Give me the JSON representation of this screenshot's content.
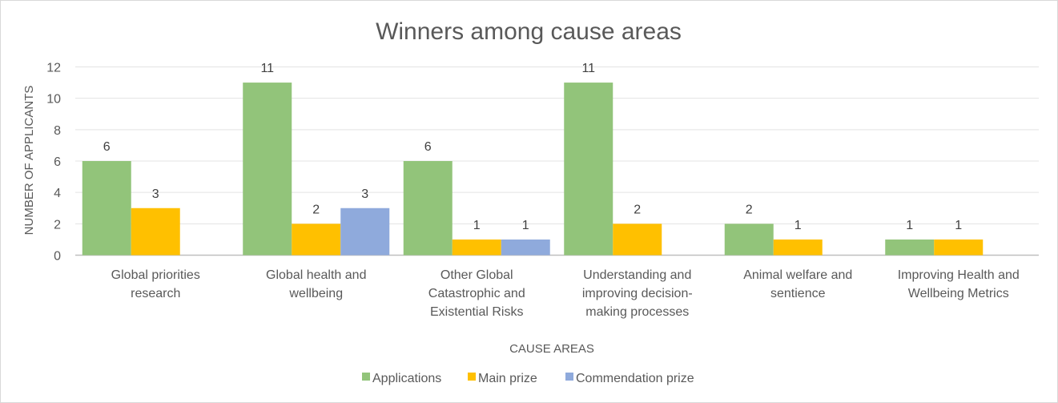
{
  "chart_data": {
    "type": "bar",
    "title": "Winners among cause areas",
    "xlabel": "CAUSE AREAS",
    "ylabel": "NUMBER OF APPLICANTS",
    "ylim": [
      0,
      12
    ],
    "yticks": [
      0,
      2,
      4,
      6,
      8,
      10,
      12
    ],
    "grid": true,
    "legend": "bottom",
    "categories": [
      [
        "Global priorities",
        "research"
      ],
      [
        "Global health and",
        "wellbeing"
      ],
      [
        "Other Global",
        "Catastrophic and",
        "Existential Risks"
      ],
      [
        "Understanding and",
        "improving decision-",
        "making processes"
      ],
      [
        "Animal welfare and",
        "sentience"
      ],
      [
        "Improving Health and",
        "Wellbeing Metrics"
      ]
    ],
    "series": [
      {
        "name": "Applications",
        "color": "#92c47a",
        "values": [
          6,
          11,
          6,
          11,
          2,
          1
        ]
      },
      {
        "name": "Main prize",
        "color": "#ffc000",
        "values": [
          3,
          2,
          1,
          2,
          1,
          1
        ]
      },
      {
        "name": "Commendation prize",
        "color": "#8faadc",
        "values": [
          null,
          3,
          1,
          null,
          null,
          null
        ]
      }
    ]
  }
}
